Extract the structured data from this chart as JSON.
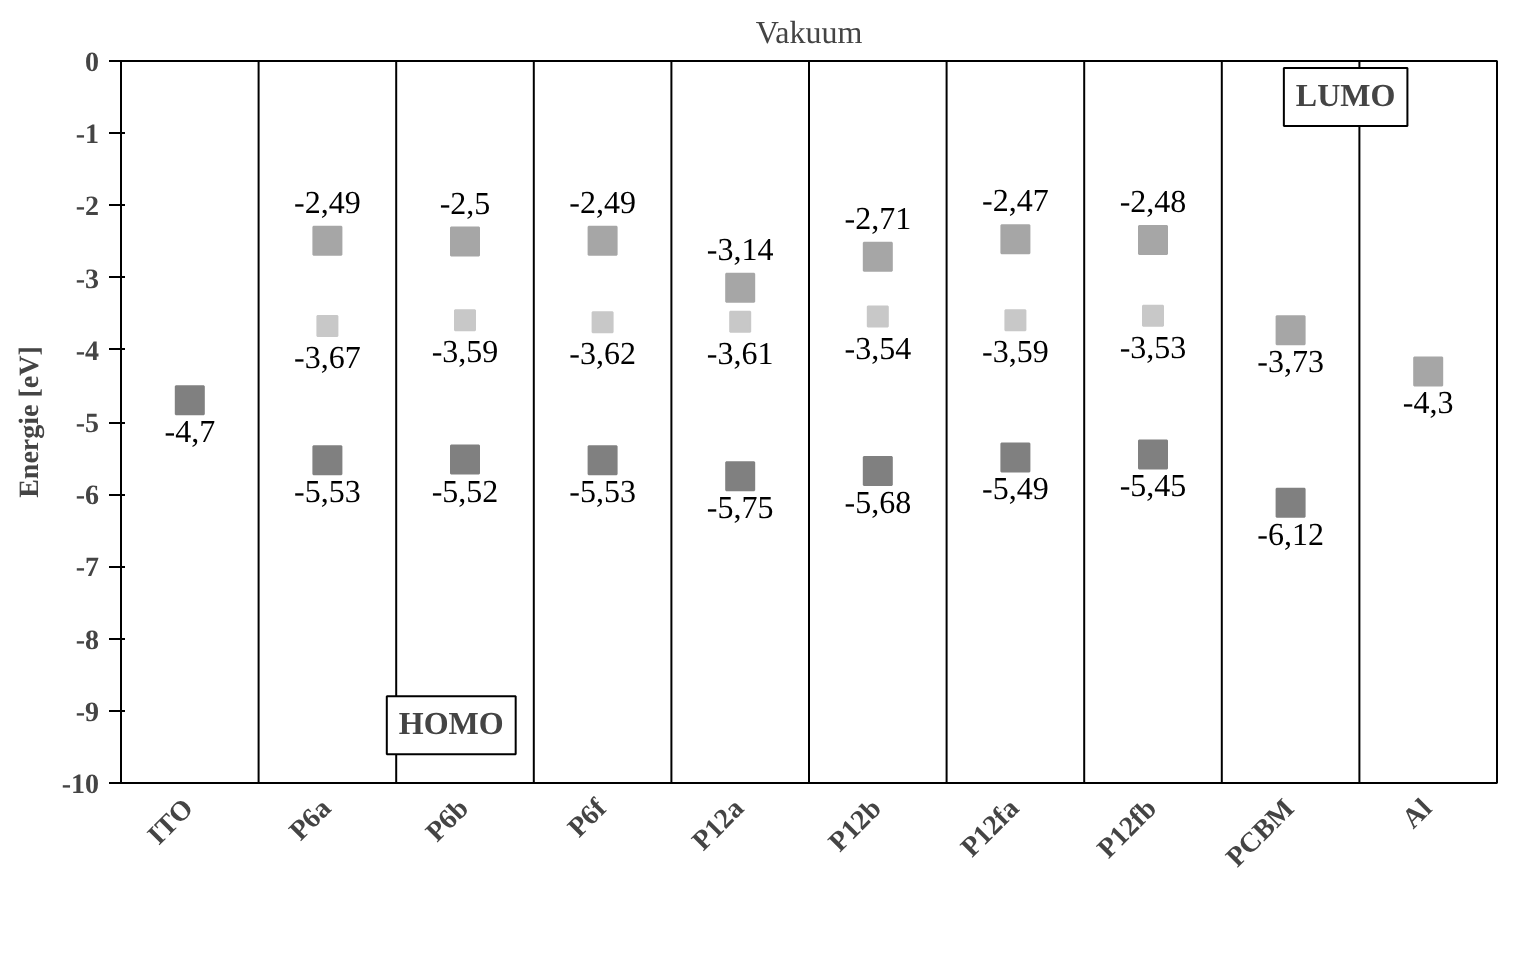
{
  "chart_data": {
    "type": "scatter",
    "ylabel": "Energie [eV]",
    "categories": [
      "ITO",
      "P6a",
      "P6b",
      "P6f",
      "P12a",
      "P12b",
      "P12fa",
      "P12fb",
      "PCBM",
      "Al"
    ],
    "series": [
      {
        "color": "#a6a6a6",
        "values": [
          null,
          -2.49,
          -2.5,
          -2.49,
          -3.14,
          -2.71,
          -2.47,
          -2.48,
          null,
          null
        ],
        "value_labels": [
          null,
          "-2,49",
          "-2,5",
          "-2,49",
          "-3,14",
          "-2,71",
          "-2,47",
          "-2,48",
          null,
          null
        ]
      },
      {
        "color": "#c8c8c8",
        "values": [
          null,
          -3.67,
          -3.59,
          -3.62,
          -3.61,
          -3.54,
          -3.59,
          -3.53,
          null,
          null
        ],
        "value_labels": [
          null,
          "-3,67",
          "-3,59",
          "-3,62",
          "-3,61",
          "-3,54",
          "-3,59",
          "-3,53",
          null,
          null
        ]
      },
      {
        "color": "#808080",
        "values": [
          -4.7,
          -5.53,
          -5.52,
          -5.53,
          -5.75,
          -5.68,
          -5.49,
          -5.45,
          -6.12,
          null
        ],
        "value_labels": [
          "-4,7",
          "-5,53",
          "-5,52",
          "-5,53",
          "-5,75",
          "-5,68",
          "-5,49",
          "-5,45",
          "-6,12",
          null
        ]
      },
      {
        "color": "#a6a6a6",
        "values": [
          null,
          null,
          null,
          null,
          null,
          null,
          null,
          null,
          -3.73,
          -4.3
        ],
        "value_labels": [
          null,
          null,
          null,
          null,
          null,
          null,
          null,
          null,
          "-3,73",
          "-4,3"
        ]
      }
    ],
    "marker": "square",
    "ylim": [
      -10,
      0
    ],
    "yticks": [
      -10,
      -9,
      -8,
      -7,
      -6,
      -5,
      -4,
      -3,
      -2,
      -1,
      0
    ],
    "annotations": [
      "Vakuum",
      "LUMO",
      "HOMO"
    ]
  }
}
